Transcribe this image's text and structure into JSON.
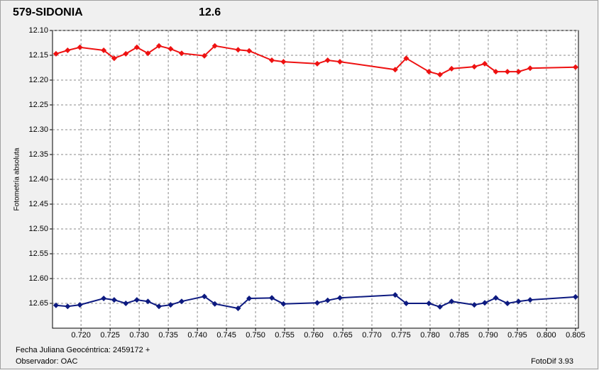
{
  "chart_data": {
    "type": "line",
    "title": "579-SIDONIA",
    "subtitle": "12.6",
    "title_color": "#ee1111",
    "subtitle_color": "#1a237e",
    "ylabel": "Fotometría absoluta",
    "footer_left_1": "Fecha Juliana Geocéntrica: 2459172 +",
    "footer_left_2": "Observador: OAC",
    "footer_right": "FotoDif 3.93",
    "grid": true,
    "y_inverted": true,
    "xlim": [
      0.7151,
      0.8055
    ],
    "ylim": [
      12.1,
      12.7
    ],
    "xticks": [
      {
        "value": 0.72,
        "label": "0.720"
      },
      0.725,
      {
        "value": 0.73,
        "label": "0.730"
      },
      0.735,
      {
        "value": 0.74,
        "label": "0.740"
      },
      0.745,
      {
        "value": 0.75,
        "label": "0.750"
      },
      0.755,
      {
        "value": 0.76,
        "label": "0.760"
      },
      0.765,
      {
        "value": 0.77,
        "label": "0.770"
      },
      0.775,
      {
        "value": 0.78,
        "label": "0.780"
      },
      0.785,
      {
        "value": 0.79,
        "label": "0.790"
      },
      0.795,
      {
        "value": 0.8,
        "label": "0.800"
      },
      0.805
    ],
    "yticks": [
      {
        "value": 12.1,
        "label": "12.10"
      },
      12.15,
      {
        "value": 12.2,
        "label": "12.20"
      },
      12.25,
      {
        "value": 12.3,
        "label": "12.30"
      },
      12.35,
      {
        "value": 12.4,
        "label": "12.40"
      },
      12.45,
      {
        "value": 12.5,
        "label": "12.50"
      },
      12.55,
      {
        "value": 12.6,
        "label": "12.60"
      },
      12.65
    ],
    "x": [
      0.7157,
      0.7177,
      0.7198,
      0.7239,
      0.7257,
      0.7277,
      0.7296,
      0.7315,
      0.7334,
      0.7354,
      0.7373,
      0.7412,
      0.743,
      0.747,
      0.7489,
      0.7528,
      0.7548,
      0.7606,
      0.7624,
      0.7645,
      0.774,
      0.7759,
      0.7798,
      0.7817,
      0.7837,
      0.7876,
      0.7894,
      0.7913,
      0.7933,
      0.7952,
      0.7972,
      0.805
    ],
    "series": [
      {
        "color": "#ee1111",
        "values": [
          12.147,
          12.14,
          12.134,
          12.14,
          12.156,
          12.147,
          12.134,
          12.146,
          12.131,
          12.137,
          12.146,
          12.151,
          12.131,
          12.139,
          12.141,
          12.16,
          12.163,
          12.167,
          12.16,
          12.163,
          12.179,
          12.156,
          12.183,
          12.189,
          12.177,
          12.173,
          12.167,
          12.183,
          12.183,
          12.183,
          12.176,
          12.174
        ]
      },
      {
        "color": "#0d1a80",
        "values": [
          12.654,
          12.656,
          12.653,
          12.64,
          12.643,
          12.65,
          12.643,
          12.646,
          12.656,
          12.653,
          12.646,
          12.636,
          12.651,
          12.66,
          12.64,
          12.639,
          12.651,
          12.649,
          12.644,
          12.639,
          12.633,
          12.65,
          12.65,
          12.657,
          12.646,
          12.653,
          12.649,
          12.639,
          12.65,
          12.646,
          12.643,
          12.637
        ]
      }
    ]
  }
}
